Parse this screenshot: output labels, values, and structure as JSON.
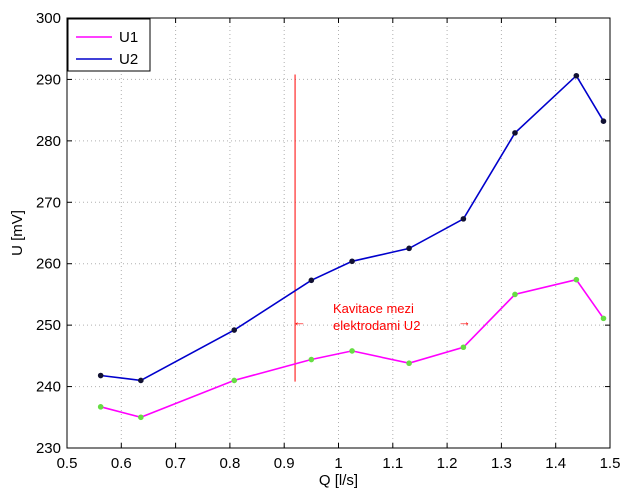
{
  "chart_data": {
    "type": "line",
    "xlabel": "Q [l/s]",
    "ylabel": "U [mV]",
    "xlim": [
      0.5,
      1.5
    ],
    "ylim": [
      230,
      300
    ],
    "xticks": [
      0.5,
      0.6,
      0.7,
      0.8,
      0.9,
      1.0,
      1.1,
      1.2,
      1.3,
      1.4,
      1.5
    ],
    "xtick_labels": [
      "0.5",
      "0.6",
      "0.7",
      "0.8",
      "0.9",
      "1",
      "1.1",
      "1.2",
      "1.3",
      "1.4",
      "1.5"
    ],
    "yticks": [
      230,
      240,
      250,
      260,
      270,
      280,
      290,
      300
    ],
    "ytick_labels": [
      "230",
      "240",
      "250",
      "260",
      "270",
      "280",
      "290",
      "300"
    ],
    "grid": true,
    "legend_position": "top-left",
    "series": [
      {
        "name": "U1",
        "color": "#ff00ff",
        "marker_color": "#66dd44",
        "x": [
          0.562,
          0.636,
          0.808,
          0.95,
          1.025,
          1.13,
          1.23,
          1.325,
          1.438,
          1.488
        ],
        "y": [
          236.7,
          235.0,
          241.0,
          244.4,
          245.8,
          243.8,
          246.4,
          255.0,
          257.4,
          251.1
        ]
      },
      {
        "name": "U2",
        "color": "#0000cc",
        "marker_color": "#111133",
        "x": [
          0.562,
          0.636,
          0.808,
          0.95,
          1.025,
          1.13,
          1.23,
          1.325,
          1.438,
          1.488
        ],
        "y": [
          241.8,
          241.0,
          249.2,
          257.3,
          260.4,
          262.5,
          267.3,
          281.3,
          290.6,
          283.2
        ]
      }
    ],
    "annotations": {
      "vline": {
        "x": 0.92,
        "y_from": 240.8,
        "y_to": 290.8,
        "color": "#ff0000"
      },
      "text_lines": [
        "Kavitace mezi",
        "elektrodami U2"
      ],
      "text_color": "#ff0000",
      "arrow_left": "←",
      "arrow_right": "→"
    }
  }
}
